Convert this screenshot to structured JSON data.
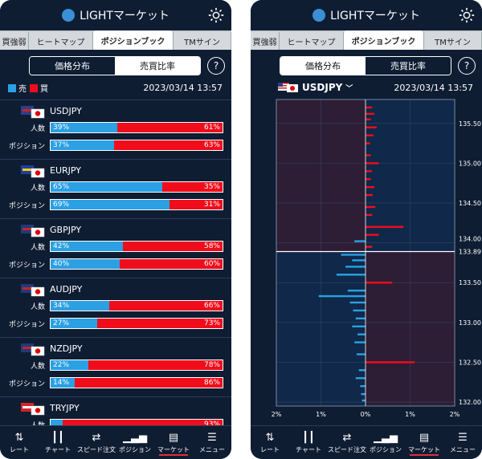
{
  "app_title": "LIGHTマーケット",
  "tabs": [
    "買強弱",
    "ヒートマップ",
    "ポジションブック",
    "TMサイン"
  ],
  "segment": {
    "left": "価格分布",
    "right": "売買比率"
  },
  "help_label": "?",
  "legend": {
    "sell": "売",
    "buy": "買"
  },
  "timestamp": "2023/03/14 13:57",
  "row_labels": {
    "count": "人数",
    "position": "ポジション"
  },
  "pairs": [
    {
      "name": "USDJPY",
      "count": [
        39,
        61
      ],
      "position": [
        37,
        63
      ]
    },
    {
      "name": "EURJPY",
      "count": [
        65,
        35
      ],
      "position": [
        69,
        31
      ]
    },
    {
      "name": "GBPJPY",
      "count": [
        42,
        58
      ],
      "position": [
        40,
        60
      ]
    },
    {
      "name": "AUDJPY",
      "count": [
        34,
        66
      ],
      "position": [
        27,
        73
      ]
    },
    {
      "name": "NZDJPY",
      "count": [
        22,
        78
      ],
      "position": [
        14,
        86
      ]
    },
    {
      "name": "TRYJPY",
      "count": [
        7,
        93
      ]
    }
  ],
  "pct_labels": {
    "USDJPY": {
      "c_sell": "39%",
      "c_buy": "61%",
      "p_sell": "37%",
      "p_buy": "63%"
    },
    "EURJPY": {
      "c_sell": "65%",
      "c_buy": "35%",
      "p_sell": "69%",
      "p_buy": "31%"
    },
    "GBPJPY": {
      "c_sell": "42%",
      "c_buy": "58%",
      "p_sell": "40%",
      "p_buy": "60%"
    },
    "AUDJPY": {
      "c_sell": "34%",
      "c_buy": "66%",
      "p_sell": "27%",
      "p_buy": "73%"
    },
    "NZDJPY": {
      "c_sell": "22%",
      "c_buy": "78%",
      "p_sell": "14%",
      "p_buy": "86%"
    },
    "TRYJPY": {
      "c_buy": "93%"
    }
  },
  "nav": [
    "レート",
    "チャート",
    "スピード注文",
    "ポジション",
    "マーケット",
    "メニュー"
  ],
  "nav_active": "マーケット",
  "selected_pair": "USDJPY",
  "colors": {
    "sell": "#2ba0e3",
    "buy": "#f00d1b",
    "bg": "#0f1d33"
  },
  "chart_data": {
    "type": "bar",
    "current_price": 133.89,
    "y_ticks": [
      135.5,
      135.0,
      134.5,
      134.0,
      133.5,
      133.0,
      132.5,
      132.0
    ],
    "y_tick_labels": [
      "135.50",
      "135.00",
      "134.50",
      "134.00",
      "133.89",
      "133.50",
      "133.00",
      "132.50",
      "132.00"
    ],
    "x_ticks": [
      -2,
      -1,
      0,
      1,
      2
    ],
    "x_tick_labels": [
      "2%",
      "1%",
      "0%",
      "1%",
      "2%"
    ],
    "ylim": [
      131.95,
      135.8
    ],
    "xlim": [
      -2,
      2
    ],
    "orders": [
      {
        "price": 135.7,
        "side": "buy",
        "pct": 0.15
      },
      {
        "price": 135.62,
        "side": "buy",
        "pct": 0.2
      },
      {
        "price": 135.55,
        "side": "buy",
        "pct": 0.12
      },
      {
        "price": 135.45,
        "side": "buy",
        "pct": 0.25
      },
      {
        "price": 135.35,
        "side": "buy",
        "pct": 0.18
      },
      {
        "price": 135.25,
        "side": "buy",
        "pct": 0.1
      },
      {
        "price": 135.1,
        "side": "buy",
        "pct": 0.12
      },
      {
        "price": 135.0,
        "side": "buy",
        "pct": 0.3
      },
      {
        "price": 134.9,
        "side": "buy",
        "pct": 0.14
      },
      {
        "price": 134.8,
        "side": "buy",
        "pct": 0.12
      },
      {
        "price": 134.7,
        "side": "buy",
        "pct": 0.2
      },
      {
        "price": 134.6,
        "side": "buy",
        "pct": 0.16
      },
      {
        "price": 134.45,
        "side": "buy",
        "pct": 0.22
      },
      {
        "price": 134.35,
        "side": "buy",
        "pct": 0.15
      },
      {
        "price": 134.2,
        "side": "buy",
        "pct": 0.85
      },
      {
        "price": 134.1,
        "side": "buy",
        "pct": 0.3
      },
      {
        "price": 134.02,
        "side": "sell",
        "pct": 0.25
      },
      {
        "price": 133.95,
        "side": "buy",
        "pct": 0.15
      },
      {
        "price": 133.85,
        "side": "sell",
        "pct": 0.55
      },
      {
        "price": 133.78,
        "side": "sell",
        "pct": 0.3
      },
      {
        "price": 133.7,
        "side": "sell",
        "pct": 0.45
      },
      {
        "price": 133.6,
        "side": "sell",
        "pct": 0.65
      },
      {
        "price": 133.5,
        "side": "buy",
        "pct": 0.6
      },
      {
        "price": 133.4,
        "side": "sell",
        "pct": 0.4
      },
      {
        "price": 133.33,
        "side": "sell",
        "pct": 1.05
      },
      {
        "price": 133.25,
        "side": "sell",
        "pct": 0.35
      },
      {
        "price": 133.15,
        "side": "sell",
        "pct": 0.28
      },
      {
        "price": 133.05,
        "side": "sell",
        "pct": 0.22
      },
      {
        "price": 132.95,
        "side": "sell",
        "pct": 0.3
      },
      {
        "price": 132.85,
        "side": "sell",
        "pct": 0.18
      },
      {
        "price": 132.75,
        "side": "sell",
        "pct": 0.25
      },
      {
        "price": 132.6,
        "side": "sell",
        "pct": 0.2
      },
      {
        "price": 132.5,
        "side": "buy",
        "pct": 1.1
      },
      {
        "price": 132.4,
        "side": "sell",
        "pct": 0.15
      },
      {
        "price": 132.3,
        "side": "sell",
        "pct": 0.22
      },
      {
        "price": 132.2,
        "side": "sell",
        "pct": 0.12
      },
      {
        "price": 132.1,
        "side": "sell",
        "pct": 0.1
      },
      {
        "price": 132.02,
        "side": "sell",
        "pct": 0.08
      }
    ]
  }
}
